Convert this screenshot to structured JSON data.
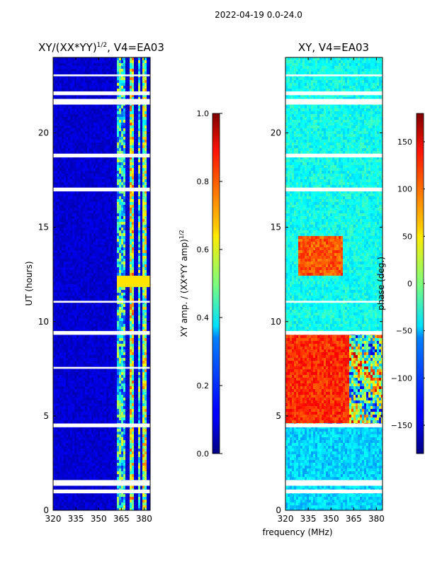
{
  "suptitle": "2022-04-19 0.0-24.0",
  "shared_xlabel": "frequency (MHz)",
  "chart_data": [
    {
      "type": "heatmap",
      "title": "XY/(XX*YY)^1/2, V4=EA03",
      "title_main": "XY/(XX*YY)",
      "title_exp": "1/2",
      "title_tail": ", V4=EA03",
      "xlabel": "frequency (MHz)",
      "ylabel": "UT (hours)",
      "xlim": [
        320,
        384
      ],
      "ylim": [
        0,
        24
      ],
      "xticks": [
        320,
        335,
        350,
        365,
        380
      ],
      "yticks": [
        0,
        5,
        10,
        15,
        20
      ],
      "colorbar": {
        "label": "XY amp. / (XX*YY amp)^1/2",
        "label_main": "XY amp. / (XX*YY amp)",
        "label_exp": "1/2",
        "range": [
          0.0,
          1.0
        ],
        "ticks": [
          0.0,
          0.2,
          0.4,
          0.6,
          0.8,
          1.0
        ],
        "tick_labels": [
          "0.0",
          "0.2",
          "0.4",
          "0.6",
          "0.8",
          "1.0"
        ]
      },
      "background_value": 0.05,
      "bright_channel_bands_mhz": [
        [
          362,
          367
        ],
        [
          371,
          373
        ],
        [
          376,
          378
        ],
        [
          379,
          382
        ]
      ],
      "bright_band_values": [
        0.35,
        0.55,
        0.4,
        0.5
      ],
      "gap_hours": [
        [
          0.9,
          1.1
        ],
        [
          1.3,
          1.6
        ],
        [
          4.4,
          4.6
        ],
        [
          7.5,
          7.6
        ],
        [
          9.3,
          9.5
        ],
        [
          11.0,
          11.1
        ],
        [
          16.9,
          17.1
        ],
        [
          18.7,
          18.9
        ],
        [
          21.5,
          21.8
        ],
        [
          22.0,
          22.2
        ],
        [
          23.0,
          23.1
        ]
      ]
    },
    {
      "type": "heatmap",
      "title": "XY, V4=EA03",
      "xlabel": "frequency (MHz)",
      "ylabel": "",
      "xlim": [
        320,
        384
      ],
      "ylim": [
        0,
        24
      ],
      "xticks": [
        320,
        335,
        350,
        365,
        380
      ],
      "yticks": [
        0,
        5,
        10,
        15,
        20
      ],
      "colorbar": {
        "label": "phase (deg.)",
        "range": [
          -180,
          180
        ],
        "ticks": [
          -150,
          -100,
          -50,
          0,
          50,
          100,
          150
        ],
        "tick_labels": [
          "−150",
          "−100",
          "−50",
          "0",
          "50",
          "100",
          "150"
        ]
      },
      "phase_regions": [
        {
          "hours": [
            4.6,
            9.4
          ],
          "freq_mhz": [
            320,
            362
          ],
          "phase_deg": 120
        },
        {
          "hours": [
            12.5,
            14.5
          ],
          "freq_mhz": [
            328,
            358
          ],
          "phase_deg": 105
        },
        {
          "hours": [
            0,
            4.4
          ],
          "freq_mhz": [
            320,
            384
          ],
          "phase_deg": -60
        },
        {
          "hours": [
            9.5,
            24
          ],
          "freq_mhz": [
            320,
            384
          ],
          "phase_deg": -40
        }
      ],
      "gap_hours": [
        [
          0.9,
          1.1
        ],
        [
          1.3,
          1.6
        ],
        [
          4.4,
          4.6
        ],
        [
          9.3,
          9.5
        ],
        [
          11.0,
          11.1
        ],
        [
          16.9,
          17.1
        ],
        [
          18.7,
          18.9
        ],
        [
          21.5,
          21.8
        ],
        [
          22.0,
          22.2
        ],
        [
          23.0,
          23.1
        ]
      ]
    }
  ]
}
